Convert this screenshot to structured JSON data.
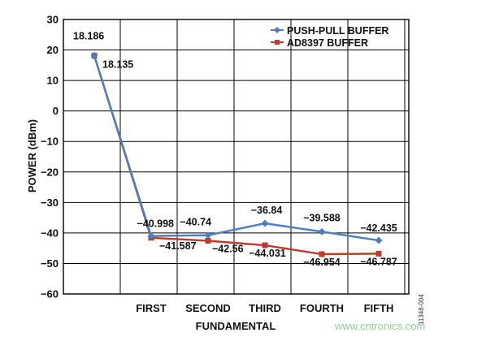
{
  "chart_data": {
    "type": "line",
    "title": "",
    "xlabel": "FUNDAMENTAL",
    "ylabel": "POWER (dBm)",
    "categories": [
      "",
      "FIRST",
      "SECOND",
      "THIRD",
      "FOURTH",
      "FIFTH"
    ],
    "ylim": [
      -60,
      30
    ],
    "yticks": [
      30,
      20,
      10,
      0,
      -10,
      -20,
      -30,
      -40,
      -50,
      -60
    ],
    "ytick_labels": [
      "30",
      "20",
      "10",
      "0",
      "−10",
      "−20",
      "−30",
      "−40",
      "−50",
      "−60"
    ],
    "grid": true,
    "legend_position": "top-right",
    "series": [
      {
        "name": "PUSH-PULL BUFFER",
        "color": "#4a7fc1",
        "marker": "diamond",
        "values": [
          18.186,
          -40.998,
          -40.74,
          -36.84,
          -39.588,
          -42.435
        ],
        "labels": [
          "18.186",
          "−40.998",
          "−40.74",
          "−36.84",
          "−39.588",
          "−42.435"
        ]
      },
      {
        "name": "AD8397 BUFFER",
        "color": "#c0392b",
        "marker": "square",
        "values": [
          18.135,
          -41.587,
          -42.56,
          -44.031,
          -46.954,
          -46.787
        ],
        "labels": [
          "18.135",
          "−41.587",
          "−42.56",
          "−44.031",
          "−46.954",
          "−46.787"
        ]
      }
    ]
  },
  "figure_id": "11348-004",
  "watermark": "www.cntronics.com"
}
